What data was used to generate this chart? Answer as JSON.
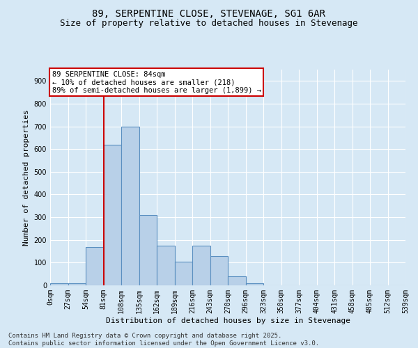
{
  "title": "89, SERPENTINE CLOSE, STEVENAGE, SG1 6AR",
  "subtitle": "Size of property relative to detached houses in Stevenage",
  "xlabel": "Distribution of detached houses by size in Stevenage",
  "ylabel": "Number of detached properties",
  "bin_labels": [
    "0sqm",
    "27sqm",
    "54sqm",
    "81sqm",
    "108sqm",
    "135sqm",
    "162sqm",
    "189sqm",
    "216sqm",
    "243sqm",
    "270sqm",
    "296sqm",
    "323sqm",
    "350sqm",
    "377sqm",
    "404sqm",
    "431sqm",
    "458sqm",
    "485sqm",
    "512sqm",
    "539sqm"
  ],
  "bar_values": [
    10,
    10,
    170,
    620,
    700,
    310,
    175,
    105,
    175,
    130,
    40,
    10,
    0,
    0,
    0,
    0,
    0,
    0,
    0,
    0
  ],
  "bar_color": "#b8d0e8",
  "bar_edge_color": "#5a8fc0",
  "vline_x": 81,
  "vline_color": "#cc0000",
  "ylim": [
    0,
    950
  ],
  "yticks": [
    0,
    100,
    200,
    300,
    400,
    500,
    600,
    700,
    800,
    900
  ],
  "annotation_text": "89 SERPENTINE CLOSE: 84sqm\n← 10% of detached houses are smaller (218)\n89% of semi-detached houses are larger (1,899) →",
  "annotation_box_facecolor": "#ffffff",
  "annotation_box_edge": "#cc0000",
  "footer_text": "Contains HM Land Registry data © Crown copyright and database right 2025.\nContains public sector information licensed under the Open Government Licence v3.0.",
  "background_color": "#d6e8f5",
  "plot_bg_color": "#d6e8f5",
  "title_fontsize": 10,
  "subtitle_fontsize": 9,
  "axis_label_fontsize": 8,
  "tick_fontsize": 7,
  "annotation_fontsize": 7.5,
  "footer_fontsize": 6.5,
  "bin_width": 27
}
